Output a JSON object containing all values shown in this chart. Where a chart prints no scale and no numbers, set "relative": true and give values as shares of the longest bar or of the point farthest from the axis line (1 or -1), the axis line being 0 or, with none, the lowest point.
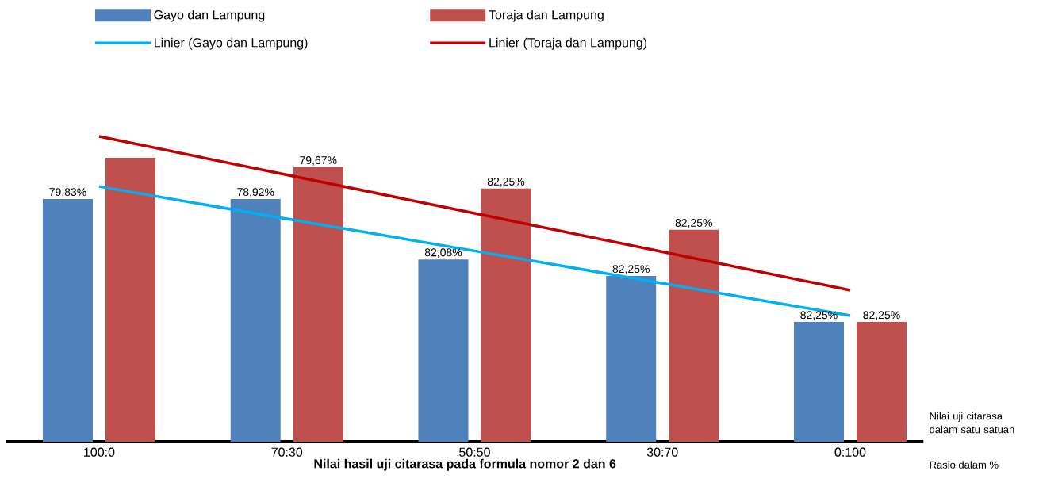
{
  "chart_data": {
    "type": "bar",
    "relative": true,
    "xlabel": "Nilai hasil uji citarasa pada formula nomor 2 dan 6",
    "categories": [
      "100:0",
      "70:30",
      "50:50",
      "30:70",
      "0:100"
    ],
    "series": [
      {
        "name": "Gayo dan Lampung",
        "color": "#4f81bd",
        "values": [
          0.795,
          0.795,
          0.597,
          0.543,
          0.392
        ]
      },
      {
        "name": "Toraja dan Lampung",
        "color": "#c0504d",
        "values": [
          0.93,
          0.899,
          0.829,
          0.694,
          0.392
        ]
      },
      {
        "name": "Linier (Gayo dan Lampung)",
        "type": "line",
        "color": "#00b0f0",
        "values": [
          0.836,
          0.73,
          0.625,
          0.519,
          0.413
        ]
      },
      {
        "name": "Linier (Toraja dan Lampung)",
        "type": "line",
        "color": "#c00000",
        "values": [
          1.0,
          0.874,
          0.748,
          0.622,
          0.496
        ]
      }
    ],
    "legend": "top",
    "annotations": [
      "Nilai uji citarasa dalam satu satuan",
      "Rasio dalam %",
      "79,83%",
      "78,92%",
      "82,08%",
      "82,25%",
      "82,25%",
      "79,67%",
      "82,25%",
      "82,25%",
      "82,25%"
    ]
  }
}
